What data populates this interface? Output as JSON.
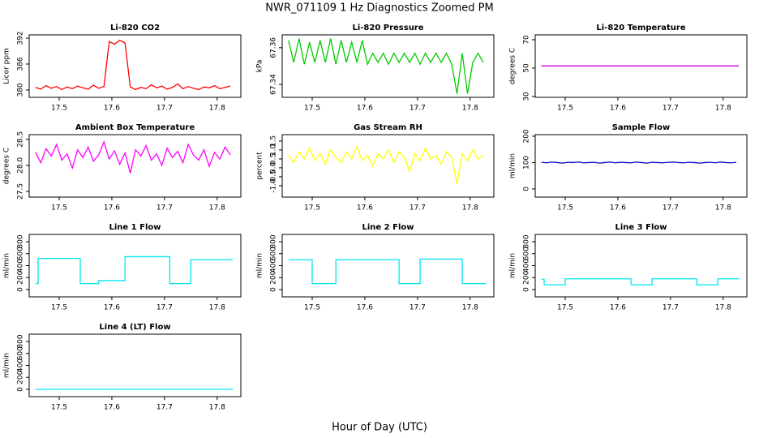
{
  "title": "NWR_071109  1 Hz Diagnostics Zoomed PM",
  "xlabel": "Hour of Day (UTC)",
  "chart_data": [
    {
      "type": "line",
      "title": "Li-820 CO2",
      "ylabel": "Licor ppm",
      "color": "#ff0000",
      "x": [
        17.455,
        17.465,
        17.475,
        17.485,
        17.495,
        17.505,
        17.515,
        17.525,
        17.535,
        17.545,
        17.555,
        17.565,
        17.575,
        17.585,
        17.595,
        17.605,
        17.615,
        17.625,
        17.635,
        17.645,
        17.655,
        17.665,
        17.675,
        17.685,
        17.695,
        17.705,
        17.715,
        17.725,
        17.735,
        17.745,
        17.755,
        17.765,
        17.775,
        17.785,
        17.795,
        17.805,
        17.815,
        17.825
      ],
      "values": [
        380.6,
        380.2,
        381.0,
        380.4,
        380.8,
        380.1,
        380.7,
        380.3,
        380.9,
        380.5,
        380.2,
        381.1,
        380.4,
        380.8,
        391.2,
        390.6,
        391.5,
        390.9,
        380.7,
        380.1,
        380.6,
        380.3,
        381.2,
        380.5,
        380.9,
        380.2,
        380.6,
        381.4,
        380.3,
        380.8,
        380.4,
        380.1,
        380.7,
        380.5,
        381.0,
        380.3,
        380.6,
        380.9
      ],
      "xlim": [
        17.443,
        17.845
      ],
      "xticks": [
        17.5,
        17.6,
        17.7,
        17.8
      ],
      "ylim": [
        378.3,
        392.75
      ],
      "yticks": [
        380,
        386,
        392
      ]
    },
    {
      "type": "line",
      "title": "Li-820 Pressure",
      "ylabel": "kPa",
      "color": "#00cc00",
      "x": [
        17.455,
        17.465,
        17.475,
        17.485,
        17.495,
        17.505,
        17.515,
        17.525,
        17.535,
        17.545,
        17.555,
        17.565,
        17.575,
        17.585,
        17.595,
        17.605,
        17.615,
        17.625,
        17.635,
        17.645,
        17.655,
        17.665,
        17.675,
        17.685,
        17.695,
        17.705,
        17.715,
        17.725,
        17.735,
        17.745,
        17.755,
        17.765,
        17.775,
        17.785,
        17.795,
        17.805,
        17.815,
        17.825
      ],
      "values": [
        67.364,
        67.352,
        67.365,
        67.351,
        67.363,
        67.352,
        67.364,
        67.352,
        67.365,
        67.351,
        67.364,
        67.352,
        67.363,
        67.352,
        67.364,
        67.351,
        67.357,
        67.352,
        67.357,
        67.351,
        67.357,
        67.352,
        67.357,
        67.352,
        67.357,
        67.351,
        67.357,
        67.352,
        67.357,
        67.352,
        67.357,
        67.351,
        67.335,
        67.357,
        67.335,
        67.352,
        67.357,
        67.352
      ],
      "xlim": [
        17.443,
        17.845
      ],
      "xticks": [
        17.5,
        17.6,
        17.7,
        17.8
      ],
      "ylim": [
        67.333,
        67.367
      ],
      "yticks": [
        67.34,
        67.36
      ]
    },
    {
      "type": "line",
      "title": "Li-820 Temperature",
      "ylabel": "degrees C",
      "color": "#cc00cc",
      "x": [
        17.455,
        17.83
      ],
      "values": [
        51.5,
        51.5
      ],
      "xlim": [
        17.443,
        17.845
      ],
      "xticks": [
        17.5,
        17.6,
        17.7,
        17.8
      ],
      "ylim": [
        29.4,
        73.4
      ],
      "yticks": [
        30,
        50,
        70
      ]
    },
    {
      "type": "line",
      "title": "Ambient Box Temperature",
      "ylabel": "degrees C",
      "color": "#ff00ff",
      "x": [
        17.455,
        17.465,
        17.475,
        17.485,
        17.495,
        17.505,
        17.515,
        17.525,
        17.535,
        17.545,
        17.555,
        17.565,
        17.575,
        17.585,
        17.595,
        17.605,
        17.615,
        17.625,
        17.635,
        17.645,
        17.655,
        17.665,
        17.675,
        17.685,
        17.695,
        17.705,
        17.715,
        17.725,
        17.735,
        17.745,
        17.755,
        17.765,
        17.775,
        17.785,
        17.795,
        17.805,
        17.815,
        17.825
      ],
      "values": [
        28.25,
        28.05,
        28.32,
        28.18,
        28.4,
        28.1,
        28.22,
        27.95,
        28.3,
        28.15,
        28.35,
        28.08,
        28.2,
        28.45,
        28.12,
        28.28,
        28.02,
        28.24,
        27.85,
        28.3,
        28.18,
        28.38,
        28.1,
        28.22,
        28.0,
        28.33,
        28.15,
        28.27,
        28.05,
        28.4,
        28.2,
        28.1,
        28.3,
        27.98,
        28.25,
        28.12,
        28.35,
        28.2
      ],
      "xlim": [
        17.443,
        17.845
      ],
      "xticks": [
        17.5,
        17.6,
        17.7,
        17.8
      ],
      "ylim": [
        27.39,
        28.59
      ],
      "yticks": [
        27.5,
        {
          "value": 28,
          "label": "28.0"
        },
        28.5
      ]
    },
    {
      "type": "line",
      "title": "Gas Stream RH",
      "ylabel": "percent",
      "color": "#ffff00",
      "x": [
        17.455,
        17.465,
        17.475,
        17.485,
        17.495,
        17.505,
        17.515,
        17.525,
        17.535,
        17.545,
        17.555,
        17.565,
        17.575,
        17.585,
        17.595,
        17.605,
        17.615,
        17.625,
        17.635,
        17.645,
        17.655,
        17.665,
        17.675,
        17.685,
        17.695,
        17.705,
        17.715,
        17.725,
        17.735,
        17.745,
        17.755,
        17.765,
        17.775,
        17.785,
        17.795,
        17.805,
        17.815,
        17.825
      ],
      "values": [
        0.7,
        0.3,
        0.9,
        0.5,
        1.1,
        0.4,
        0.8,
        0.2,
        1.0,
        0.6,
        0.3,
        0.9,
        0.5,
        1.2,
        0.4,
        0.7,
        0.1,
        0.8,
        0.5,
        1.0,
        0.3,
        0.9,
        0.6,
        -0.2,
        0.8,
        0.4,
        1.1,
        0.5,
        0.7,
        0.2,
        0.9,
        0.6,
        -0.9,
        0.8,
        0.4,
        1.0,
        0.5,
        0.7
      ],
      "xlim": [
        17.443,
        17.845
      ],
      "xticks": [
        17.5,
        17.6,
        17.7,
        17.8
      ],
      "ylim": [
        -1.64,
        1.86
      ],
      "yticks": [
        {
          "value": -1,
          "label": "-1.0"
        },
        -0.5,
        {
          "value": 0,
          "label": "0.0"
        },
        0.5,
        {
          "value": 1,
          "label": "1.0"
        },
        1.5
      ]
    },
    {
      "type": "line",
      "title": "Sample Flow",
      "ylabel": "ml/min",
      "color": "#0000cc",
      "x": [
        17.455,
        17.465,
        17.475,
        17.485,
        17.495,
        17.505,
        17.515,
        17.525,
        17.535,
        17.545,
        17.555,
        17.565,
        17.575,
        17.585,
        17.595,
        17.605,
        17.615,
        17.625,
        17.635,
        17.645,
        17.655,
        17.665,
        17.675,
        17.685,
        17.695,
        17.705,
        17.715,
        17.725,
        17.735,
        17.745,
        17.755,
        17.765,
        17.775,
        17.785,
        17.795,
        17.805,
        17.815,
        17.825
      ],
      "values": [
        101,
        99,
        102,
        100,
        98,
        101,
        100,
        102,
        99,
        100,
        101,
        98,
        100,
        102,
        99,
        101,
        100,
        99,
        102,
        100,
        98,
        101,
        100,
        99,
        101,
        102,
        100,
        99,
        101,
        100,
        98,
        100,
        101,
        99,
        102,
        100,
        99,
        101
      ],
      "xlim": [
        17.443,
        17.845
      ],
      "xticks": [
        17.5,
        17.6,
        17.7,
        17.8
      ],
      "ylim": [
        -31,
        206
      ],
      "yticks": [
        0,
        100,
        200
      ]
    },
    {
      "type": "line",
      "title": "Line 1 Flow",
      "ylabel": "ml/min",
      "color": "#00e5ee",
      "x": [
        17.455,
        17.46,
        17.46,
        17.54,
        17.54,
        17.575,
        17.575,
        17.625,
        17.625,
        17.71,
        17.71,
        17.75,
        17.75,
        17.83
      ],
      "values": [
        100,
        100,
        520,
        520,
        100,
        100,
        150,
        150,
        550,
        550,
        100,
        100,
        500,
        500
      ],
      "xlim": [
        17.443,
        17.845
      ],
      "xticks": [
        17.5,
        17.6,
        17.7,
        17.8
      ],
      "ylim": [
        -122,
        922
      ],
      "yticks": [
        0,
        200,
        400,
        600,
        800
      ]
    },
    {
      "type": "line",
      "title": "Line 2 Flow",
      "ylabel": "ml/min",
      "color": "#00e5ee",
      "x": [
        17.455,
        17.5,
        17.5,
        17.545,
        17.545,
        17.665,
        17.665,
        17.705,
        17.705,
        17.785,
        17.785,
        17.83
      ],
      "values": [
        500,
        500,
        100,
        100,
        500,
        500,
        100,
        100,
        510,
        510,
        100,
        100
      ],
      "xlim": [
        17.443,
        17.845
      ],
      "xticks": [
        17.5,
        17.6,
        17.7,
        17.8
      ],
      "ylim": [
        -122,
        922
      ],
      "yticks": [
        0,
        200,
        400,
        600,
        800
      ]
    },
    {
      "type": "line",
      "title": "Line 3 Flow",
      "ylabel": "ml/min",
      "color": "#00e5ee",
      "x": [
        17.455,
        17.46,
        17.46,
        17.5,
        17.5,
        17.625,
        17.625,
        17.665,
        17.665,
        17.75,
        17.75,
        17.79,
        17.79,
        17.83
      ],
      "values": [
        170,
        170,
        80,
        80,
        180,
        180,
        80,
        80,
        180,
        180,
        80,
        80,
        180,
        180
      ],
      "xlim": [
        17.443,
        17.845
      ],
      "xticks": [
        17.5,
        17.6,
        17.7,
        17.8
      ],
      "ylim": [
        -122,
        922
      ],
      "yticks": [
        0,
        200,
        400,
        600,
        800
      ]
    },
    {
      "type": "line",
      "title": "Line 4 (LT) Flow",
      "ylabel": "ml/min",
      "color": "#00e5ee",
      "x": [
        17.455,
        17.83
      ],
      "values": [
        0,
        0
      ],
      "xlim": [
        17.443,
        17.845
      ],
      "xticks": [
        17.5,
        17.6,
        17.7,
        17.8
      ],
      "ylim": [
        -122,
        922
      ],
      "yticks": [
        0,
        200,
        400,
        600,
        800
      ]
    }
  ]
}
